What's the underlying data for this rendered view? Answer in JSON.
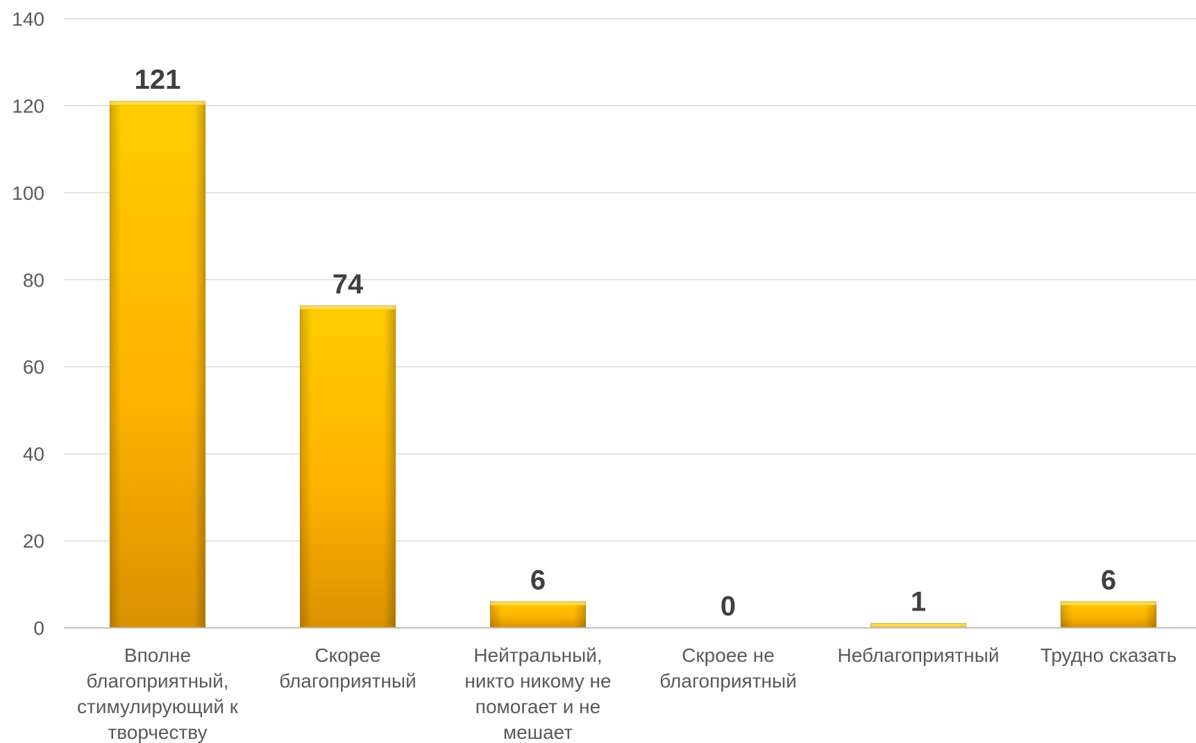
{
  "chart_data": {
    "type": "bar",
    "categories": [
      [
        "Вполне",
        "благоприятный,",
        "стимулирующий к",
        "творчеству"
      ],
      [
        "Скорее",
        "благоприятный"
      ],
      [
        "Нейтральный,",
        "никто никому не",
        "помогает и не",
        "мешает"
      ],
      [
        "Скроее не",
        "благоприятный"
      ],
      [
        "Неблагоприятный"
      ],
      [
        "Трудно сказать"
      ]
    ],
    "values": [
      121,
      74,
      6,
      0,
      1,
      6
    ],
    "data_labels": [
      "121",
      "74",
      "6",
      "0",
      "1",
      "6"
    ],
    "ylim": [
      0,
      140
    ],
    "yticks": [
      "0",
      "20",
      "40",
      "60",
      "80",
      "100",
      "120",
      "140"
    ],
    "grid": true,
    "bar_color": "#ffc000",
    "title": "",
    "xlabel": "",
    "ylabel": ""
  }
}
